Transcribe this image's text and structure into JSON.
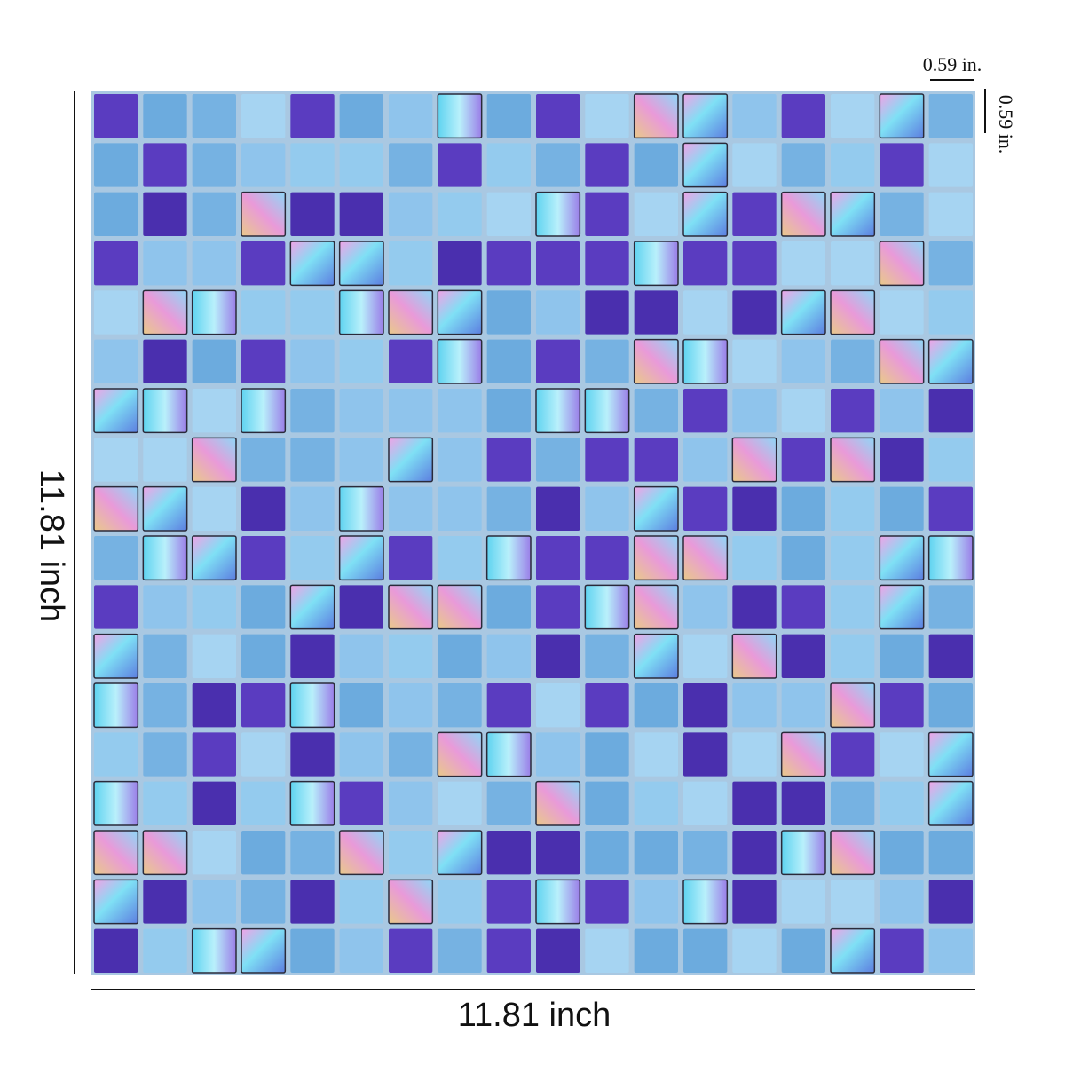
{
  "dimensions": {
    "tile_width": "0.59 in.",
    "tile_height": "0.59 in.",
    "sheet_height": "11.81 inch",
    "sheet_width": "11.81 inch"
  }
}
